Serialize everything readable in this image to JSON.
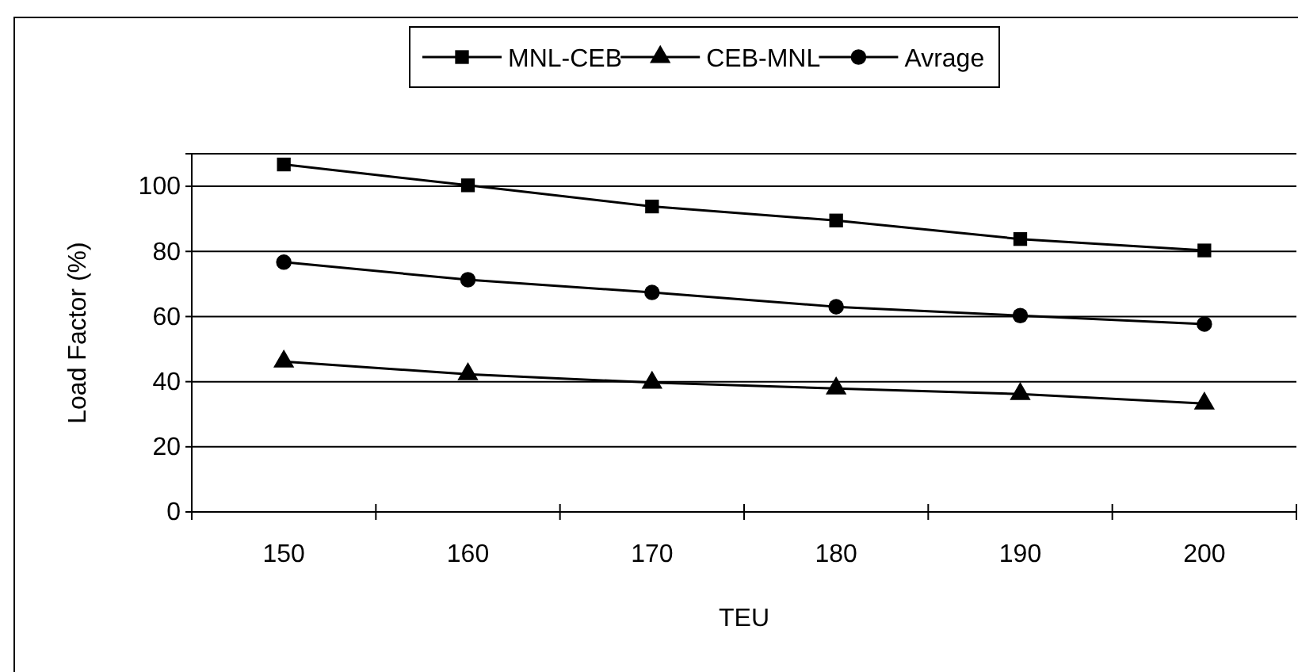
{
  "chart_data": {
    "type": "line",
    "xlabel": "TEU",
    "ylabel": "Load Factor (%)",
    "categories": [
      "150",
      "160",
      "170",
      "180",
      "190",
      "200"
    ],
    "series": [
      {
        "name": "MNL-CEB",
        "color": "#000000",
        "marker": "square",
        "values": [
          106.7,
          100.3,
          93.8,
          89.5,
          83.8,
          80.3
        ]
      },
      {
        "name": "CEB-MNL",
        "color": "#000000",
        "marker": "triangle",
        "values": [
          46.2,
          42.3,
          39.7,
          37.9,
          36.2,
          33.3
        ]
      },
      {
        "name": "Avrage",
        "color": "#000000",
        "marker": "circle",
        "values": [
          76.7,
          71.3,
          67.4,
          63,
          60.3,
          57.7
        ]
      }
    ],
    "ylim": [
      0,
      110
    ],
    "yticks": [
      0,
      20,
      40,
      60,
      80,
      100
    ],
    "grid": "y",
    "legend": "top",
    "line_style": "solid"
  }
}
